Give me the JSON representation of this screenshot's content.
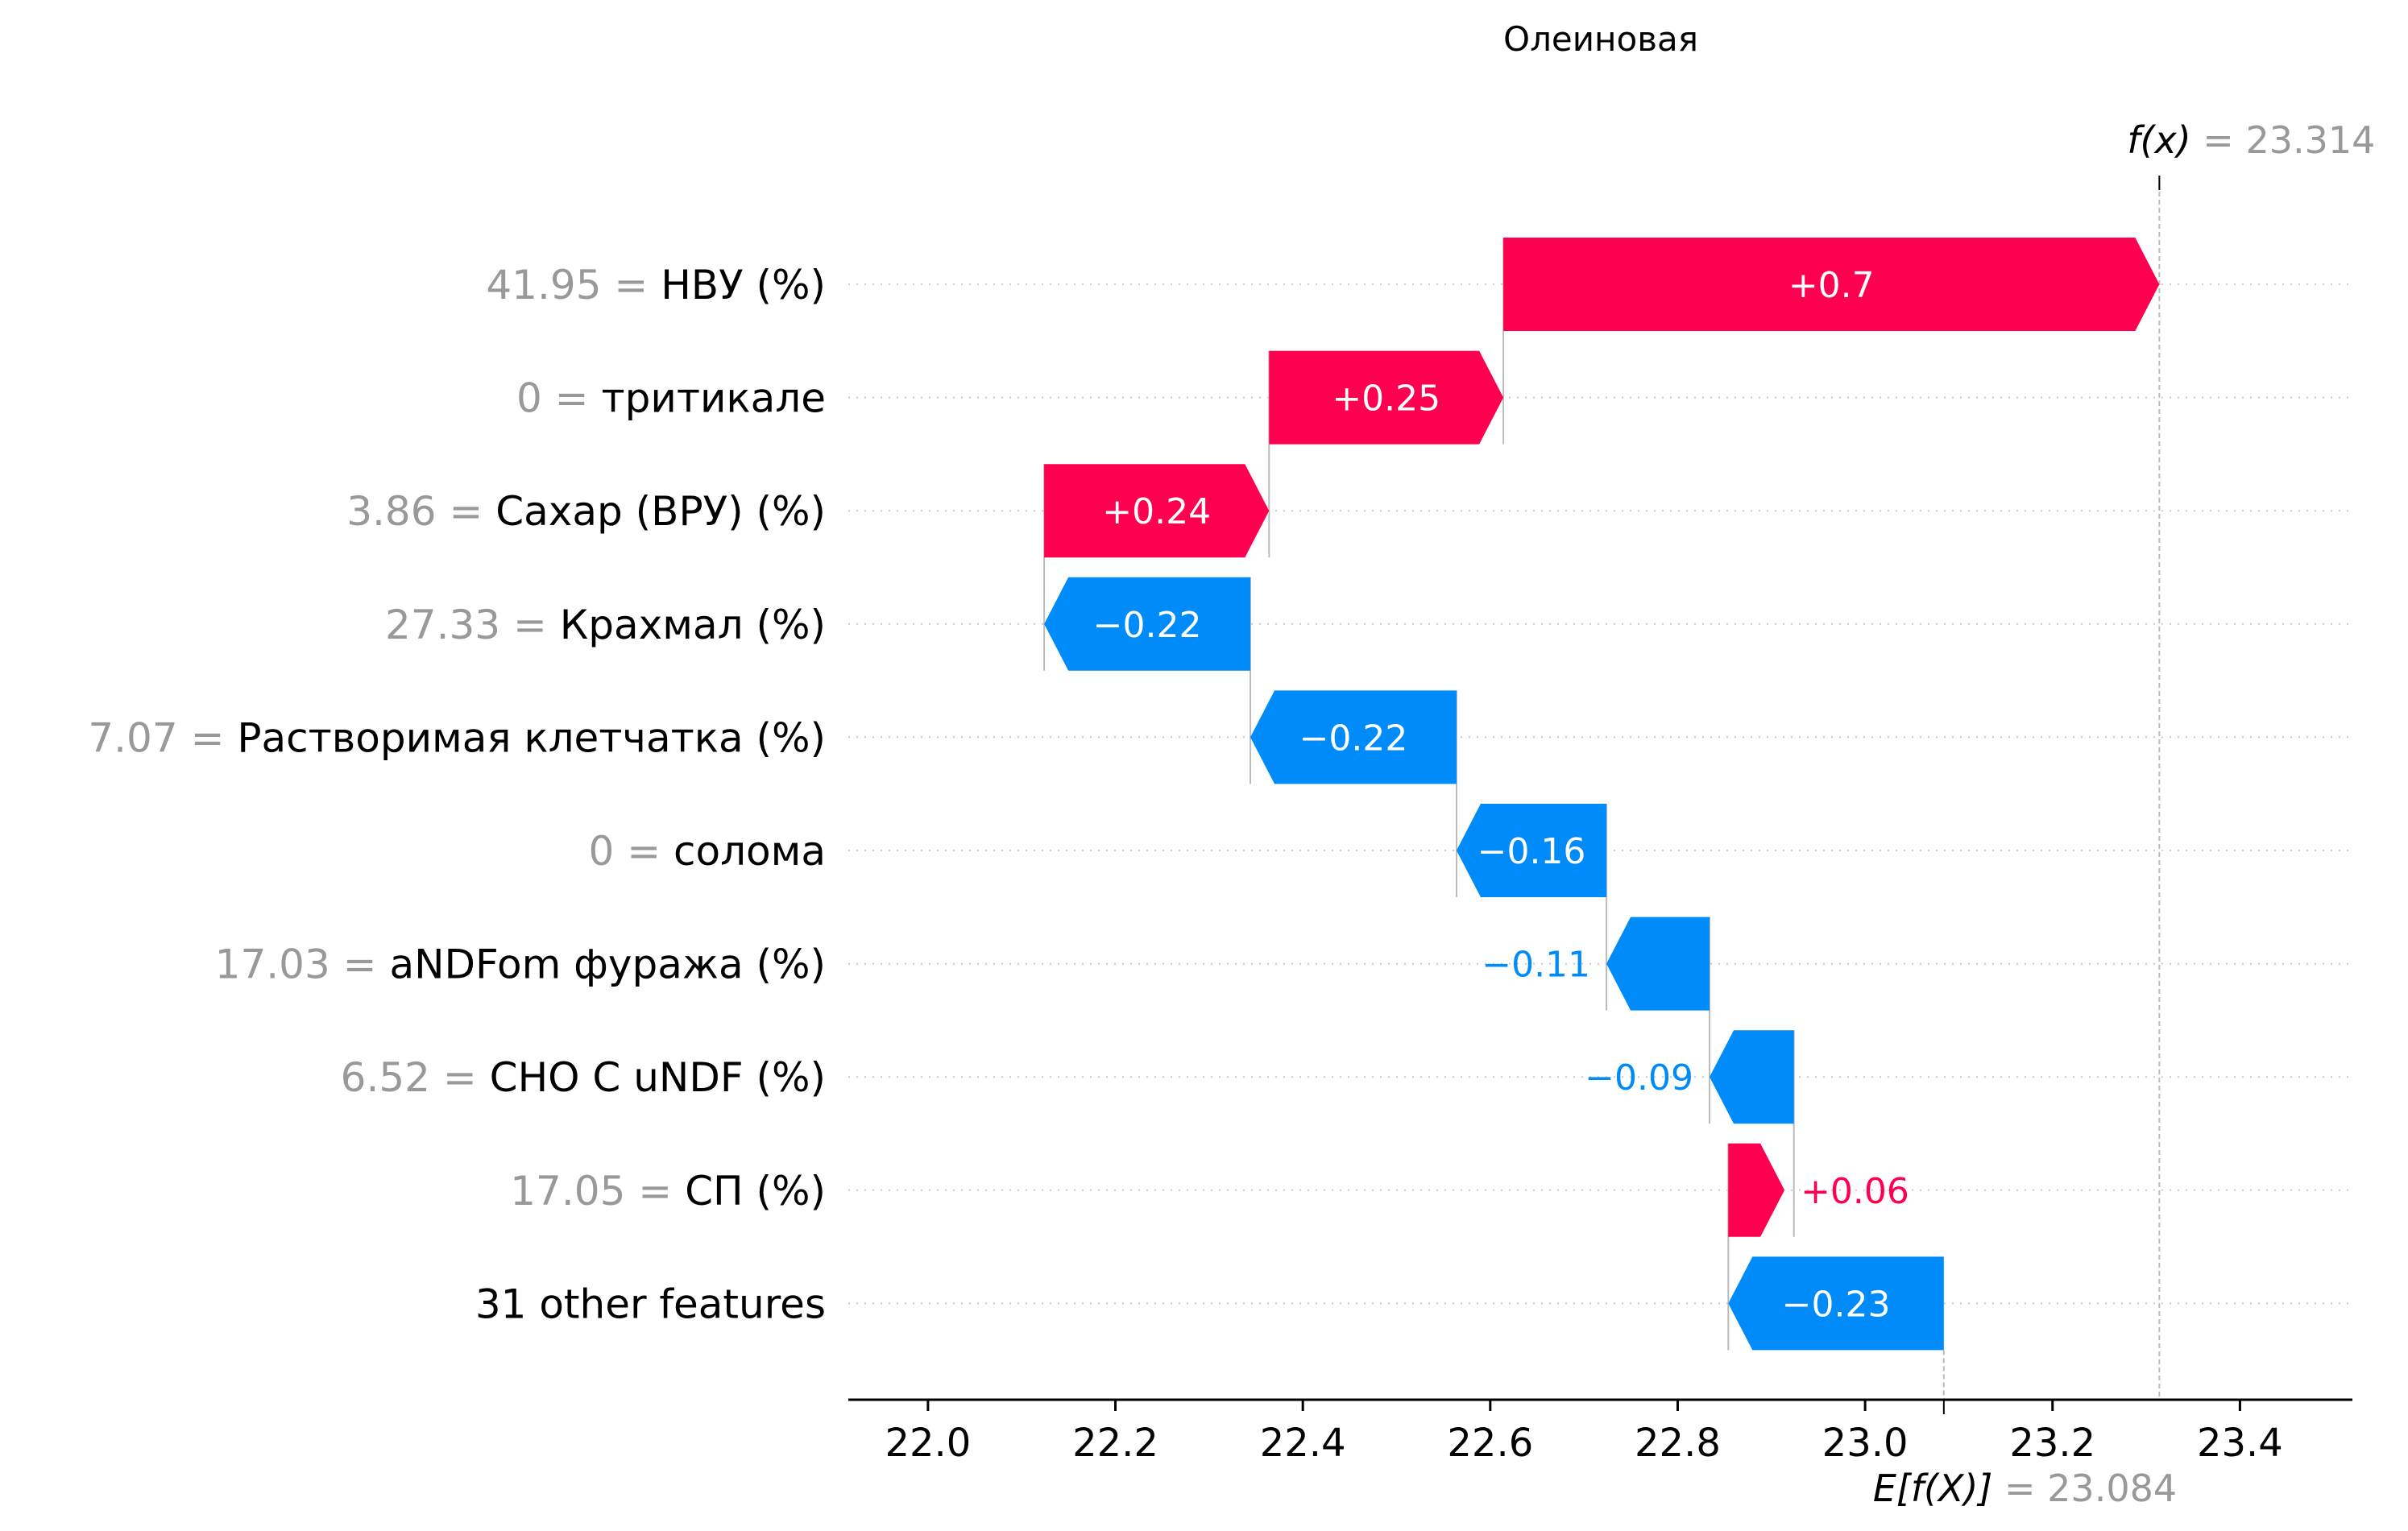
{
  "chart_data": {
    "type": "waterfall",
    "title": "Олеиновая",
    "x_ticks": [
      "22.0",
      "22.2",
      "22.4",
      "22.6",
      "22.8",
      "23.0",
      "23.2",
      "23.4"
    ],
    "xlim": [
      21.915,
      23.52
    ],
    "base_value": 23.084,
    "base_value_label": "23.084",
    "base_label_text": "E[f(X)]",
    "output_value": 23.314,
    "output_value_label": "23.314",
    "output_label_text": "f(x)",
    "features": [
      {
        "value_text": "41.95",
        "name": "НВУ (%)",
        "contribution": 0.7,
        "label": "+0.7",
        "start": 22.614,
        "end": 23.314
      },
      {
        "value_text": "0",
        "name": "тритикале",
        "contribution": 0.25,
        "label": "+0.25",
        "start": 22.364,
        "end": 22.614
      },
      {
        "value_text": "3.86",
        "name": "Сахар (ВРУ) (%)",
        "contribution": 0.24,
        "label": "+0.24",
        "start": 22.124,
        "end": 22.364
      },
      {
        "value_text": "27.33",
        "name": "Крахмал (%)",
        "contribution": -0.22,
        "label": "−0.22",
        "start": 22.344,
        "end": 22.124
      },
      {
        "value_text": "7.07",
        "name": "Растворимая клетчатка (%)",
        "contribution": -0.22,
        "label": "−0.22",
        "start": 22.564,
        "end": 22.344
      },
      {
        "value_text": "0",
        "name": "солома",
        "contribution": -0.16,
        "label": "−0.16",
        "start": 22.724,
        "end": 22.564
      },
      {
        "value_text": "17.03",
        "name": "aNDFom фуража (%)",
        "contribution": -0.11,
        "label": "−0.11",
        "start": 22.834,
        "end": 22.724
      },
      {
        "value_text": "6.52",
        "name": "CHO C uNDF (%)",
        "contribution": -0.09,
        "label": "−0.09",
        "start": 22.924,
        "end": 22.834
      },
      {
        "value_text": "17.05",
        "name": "СП (%)",
        "contribution": 0.06,
        "label": "+0.06",
        "start": 22.854,
        "end": 22.914
      },
      {
        "value_text": "",
        "name": "31 other features",
        "contribution": -0.23,
        "label": "−0.23",
        "start": 23.084,
        "end": 22.854
      }
    ],
    "colors": {
      "positive": "#ff0051",
      "negative": "#008bfb",
      "muted": "#999999"
    },
    "grid": "dotted horizontal"
  }
}
